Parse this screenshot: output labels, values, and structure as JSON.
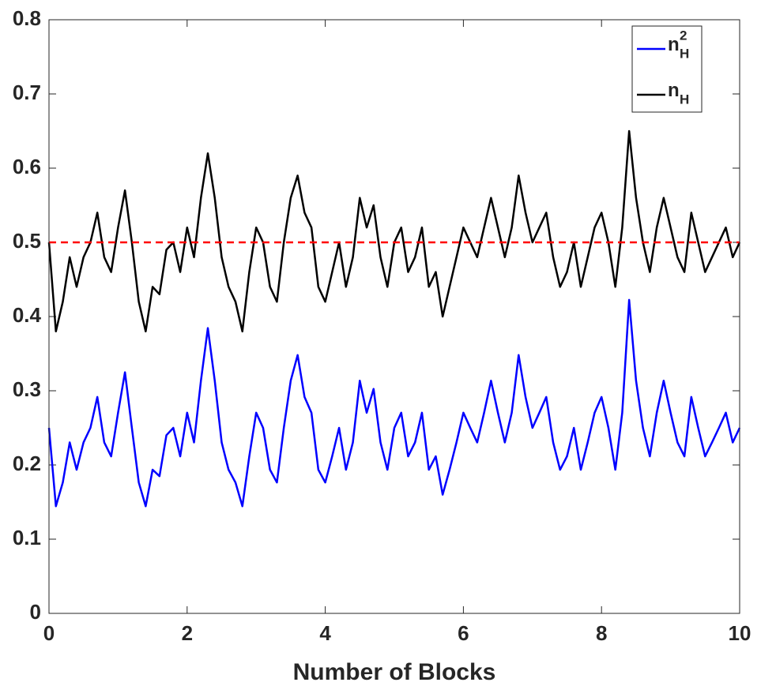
{
  "chart_data": {
    "type": "line",
    "xlabel": "Number of Blocks",
    "x": [
      0,
      0.1,
      0.2,
      0.3,
      0.4,
      0.5,
      0.6,
      0.7,
      0.8,
      0.9,
      1,
      1.1,
      1.2,
      1.3,
      1.4,
      1.5,
      1.6,
      1.7,
      1.8,
      1.9,
      2,
      2.1,
      2.2,
      2.3,
      2.4,
      2.5,
      2.6,
      2.7,
      2.8,
      2.9,
      3,
      3.1,
      3.2,
      3.3,
      3.4,
      3.5,
      3.6,
      3.7,
      3.8,
      3.9,
      4,
      4.1,
      4.2,
      4.3,
      4.4,
      4.5,
      4.6,
      4.7,
      4.8,
      4.9,
      5,
      5.1,
      5.2,
      5.3,
      5.4,
      5.5,
      5.6,
      5.7,
      5.8,
      5.9,
      6,
      6.1,
      6.2,
      6.3,
      6.4,
      6.5,
      6.6,
      6.7,
      6.8,
      6.9,
      7,
      7.1,
      7.2,
      7.3,
      7.4,
      7.5,
      7.6,
      7.7,
      7.8,
      7.9,
      8,
      8.1,
      8.2,
      8.3,
      8.4,
      8.5,
      8.6,
      8.7,
      8.8,
      8.9,
      9,
      9.1,
      9.2,
      9.3,
      9.4,
      9.5,
      9.6,
      9.7,
      9.8,
      9.9,
      10
    ],
    "series": [
      {
        "name": "n",
        "sub": "H",
        "sup": "2",
        "color": "#0000ff",
        "values": [
          0.25,
          0.1444,
          0.1764,
          0.2304,
          0.1936,
          0.2304,
          0.25,
          0.2916,
          0.2304,
          0.2116,
          0.2704,
          0.3249,
          0.25,
          0.1764,
          0.1444,
          0.1936,
          0.1849,
          0.2401,
          0.25,
          0.2116,
          0.2704,
          0.2304,
          0.3136,
          0.3844,
          0.3136,
          0.2304,
          0.1936,
          0.1764,
          0.1444,
          0.2116,
          0.2704,
          0.25,
          0.1936,
          0.1764,
          0.25,
          0.3136,
          0.3481,
          0.2916,
          0.2704,
          0.1936,
          0.1764,
          0.2116,
          0.25,
          0.1936,
          0.2304,
          0.3136,
          0.2704,
          0.3025,
          0.2304,
          0.1936,
          0.25,
          0.2704,
          0.2116,
          0.2304,
          0.2704,
          0.1936,
          0.2116,
          0.16,
          0.1936,
          0.2304,
          0.2704,
          0.25,
          0.2304,
          0.2704,
          0.3136,
          0.2704,
          0.2304,
          0.2704,
          0.3481,
          0.2916,
          0.25,
          0.2704,
          0.2916,
          0.2304,
          0.1936,
          0.2116,
          0.25,
          0.1936,
          0.2304,
          0.2704,
          0.2916,
          0.25,
          0.1936,
          0.2704,
          0.4225,
          0.3136,
          0.25,
          0.2116,
          0.2704,
          0.3136,
          0.2704,
          0.2304,
          0.2116,
          0.2916,
          0.25,
          0.2116,
          0.2304,
          0.25,
          0.2704,
          0.2304,
          0.25
        ]
      },
      {
        "name": "n",
        "sub": "H",
        "color": "#000000",
        "values": [
          0.5,
          0.38,
          0.42,
          0.48,
          0.44,
          0.48,
          0.5,
          0.54,
          0.48,
          0.46,
          0.52,
          0.57,
          0.5,
          0.42,
          0.38,
          0.44,
          0.43,
          0.49,
          0.5,
          0.46,
          0.52,
          0.48,
          0.56,
          0.62,
          0.56,
          0.48,
          0.44,
          0.42,
          0.38,
          0.46,
          0.52,
          0.5,
          0.44,
          0.42,
          0.5,
          0.56,
          0.59,
          0.54,
          0.52,
          0.44,
          0.42,
          0.46,
          0.5,
          0.44,
          0.48,
          0.56,
          0.52,
          0.55,
          0.48,
          0.44,
          0.5,
          0.52,
          0.46,
          0.48,
          0.52,
          0.44,
          0.46,
          0.4,
          0.44,
          0.48,
          0.52,
          0.5,
          0.48,
          0.52,
          0.56,
          0.52,
          0.48,
          0.52,
          0.59,
          0.54,
          0.5,
          0.52,
          0.54,
          0.48,
          0.44,
          0.46,
          0.5,
          0.44,
          0.48,
          0.52,
          0.54,
          0.5,
          0.44,
          0.52,
          0.65,
          0.56,
          0.5,
          0.46,
          0.52,
          0.56,
          0.52,
          0.48,
          0.46,
          0.54,
          0.5,
          0.46,
          0.48,
          0.5,
          0.52,
          0.48,
          0.5
        ]
      }
    ],
    "hlines": [
      {
        "y": 0.5,
        "color": "#ff0000",
        "style": "dashed"
      }
    ],
    "xlim": [
      0,
      10
    ],
    "xticks": [
      0,
      2,
      4,
      6,
      8,
      10
    ],
    "ylim": [
      0,
      0.8
    ],
    "yticks": [
      0,
      0.1,
      0.2,
      0.3,
      0.4,
      0.5,
      0.6,
      0.7,
      0.8
    ],
    "grid": false,
    "legend": "northeast"
  }
}
